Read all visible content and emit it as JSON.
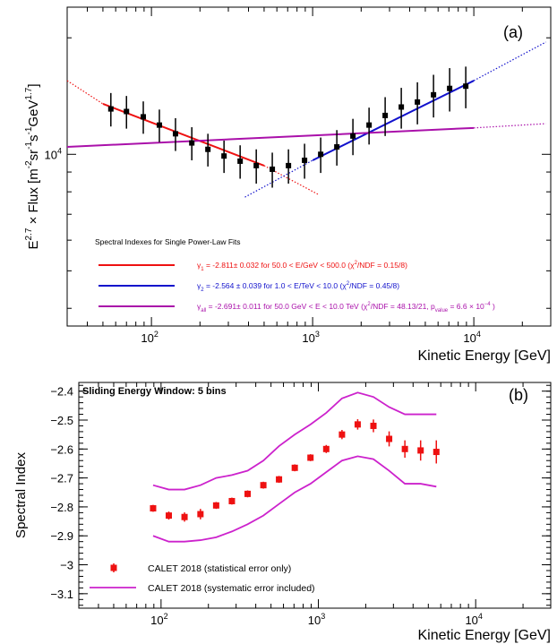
{
  "chart_data": [
    {
      "panel_label": "(a)",
      "type": "scatter",
      "xlabel": "Kinetic Energy [GeV]",
      "ylabel_parts": {
        "main": "E",
        "sup1": "2.7",
        "mid": " × Flux [m",
        "sup2": "-2",
        "s1": "sr",
        "sup3": "-1",
        "s2": "s",
        "sup4": "-1",
        "s3": "GeV",
        "sup5": "1.7",
        "end": "]"
      },
      "xscale": "log",
      "yscale": "log",
      "xlim": [
        30,
        30000
      ],
      "ylim": [
        3600,
        24000
      ],
      "x_ticks": [
        {
          "base": "10",
          "exp": "2",
          "value": 100
        },
        {
          "base": "10",
          "exp": "3",
          "value": 1000
        },
        {
          "base": "10",
          "exp": "4",
          "value": 10000
        }
      ],
      "y_ticks": [
        {
          "base": "10",
          "exp": "4",
          "value": 10000
        }
      ],
      "grid": false,
      "points": {
        "color": "#000000",
        "x": [
          56,
          70,
          89,
          112,
          141,
          178,
          224,
          282,
          355,
          447,
          562,
          708,
          891,
          1122,
          1413,
          1778,
          2239,
          2818,
          3548,
          4467,
          5623,
          7079,
          8913
        ],
        "y": [
          13100,
          12900,
          12500,
          11900,
          11300,
          10700,
          10300,
          9900,
          9600,
          9350,
          9150,
          9350,
          9650,
          10000,
          10450,
          11150,
          11900,
          12600,
          13250,
          13650,
          14250,
          14800,
          15000
        ],
        "err": [
          1300,
          1250,
          1200,
          1150,
          1100,
          1050,
          1000,
          950,
          950,
          950,
          950,
          950,
          1000,
          1050,
          1100,
          1200,
          1300,
          1450,
          1600,
          1700,
          1800,
          1900,
          1850
        ]
      },
      "fits": [
        {
          "color": "#ee1111",
          "x": [
            50,
            500
          ],
          "y": [
            13500,
            9350
          ],
          "ext": [
            [
              30,
              15500
            ],
            [
              1100,
              7850
            ]
          ],
          "legend": "γ₁ = -2.811± 0.032 for 50.0 < E/GeV < 500.0 (χ²/NDF = 0.15/8)"
        },
        {
          "color": "#1111cc",
          "x": [
            1000,
            10000
          ],
          "y": [
            9650,
            15500
          ],
          "ext": [
            [
              380,
              7750
            ],
            [
              28000,
              19500
            ]
          ],
          "legend": "γ₂ = -2.564 ± 0.039 for 1.0 < E/TeV < 10.0 (χ²/NDF = 0.45/8)"
        },
        {
          "color": "#aa11aa",
          "x": [
            30,
            10000
          ],
          "y": [
            10450,
            11700
          ],
          "ext": [
            [
              10000,
              11700
            ],
            [
              28000,
              12000
            ]
          ],
          "legend": "γall = -2.691± 0.011 for 50.0 GeV < E < 10.0 TeV (χ²/NDF = 48.13/21, pvalue = 6.6 × 10⁻⁴ )"
        }
      ],
      "legend_title": "Spectral Indexes for Single Power-Law Fits",
      "legend_entries": [
        {
          "pre": "γ",
          "sub": "1",
          "post": " = -2.811± 0.032 for 50.0 < E/GeV < 500.0 (χ",
          "sup": "2",
          "post2": "/NDF = 0.15/8)",
          "color": "#ee1111"
        },
        {
          "pre": "γ",
          "sub": "2",
          "post": " = -2.564 ± 0.039 for 1.0 < E/TeV < 10.0 (χ",
          "sup": "2",
          "post2": "/NDF = 0.45/8)",
          "color": "#1111cc"
        },
        {
          "pre": "γ",
          "sub": "all",
          "post": " = -2.691± 0.011 for 50.0 GeV < E < 10.0 TeV (χ",
          "sup": "2",
          "post2": "/NDF = 48.13/21, p",
          "sub2": "value",
          "post3": " = 6.6 × 10",
          "sup2": "−4",
          "post4": " )",
          "color": "#aa11aa"
        }
      ],
      "legend_placement": "bottom-left"
    },
    {
      "panel_label": "(b)",
      "type": "scatter",
      "title_in_plot": "Sliding Energy Window: 5 bins",
      "xlabel": "Kinetic Energy [GeV]",
      "ylabel": "Spectral Index",
      "xscale": "log",
      "xlim": [
        30,
        30000
      ],
      "ylim": [
        -3.15,
        -2.37
      ],
      "y_ticks": [
        "−2.4",
        "−2.5",
        "−2.6",
        "−2.7",
        "−2.8",
        "−2.9",
        "−3",
        "−3.1"
      ],
      "y_tick_values": [
        -2.4,
        -2.5,
        -2.6,
        -2.7,
        -2.8,
        -2.9,
        -3.0,
        -3.1
      ],
      "x_ticks": [
        {
          "base": "10",
          "exp": "2",
          "value": 100
        },
        {
          "base": "10",
          "exp": "3",
          "value": 1000
        },
        {
          "base": "10",
          "exp": "4",
          "value": 10000
        }
      ],
      "grid": false,
      "series": [
        {
          "name": "CALET 2018 (statistical error only)",
          "color": "#ee1111",
          "x": [
            89,
            112,
            141,
            178,
            224,
            282,
            355,
            447,
            562,
            708,
            891,
            1122,
            1413,
            1778,
            2239,
            2818,
            3548,
            4467,
            5623
          ],
          "y": [
            -2.805,
            -2.83,
            -2.835,
            -2.825,
            -2.795,
            -2.78,
            -2.755,
            -2.725,
            -2.705,
            -2.665,
            -2.63,
            -2.6,
            -2.55,
            -2.515,
            -2.52,
            -2.565,
            -2.6,
            -2.605,
            -2.61
          ],
          "err": [
            0.012,
            0.014,
            0.016,
            0.018,
            0.012,
            0.012,
            0.012,
            0.012,
            0.012,
            0.012,
            0.012,
            0.014,
            0.016,
            0.018,
            0.022,
            0.026,
            0.03,
            0.035,
            0.04
          ]
        },
        {
          "name": "CALET 2018 (systematic error included)",
          "color": "#cc22cc",
          "band_x": [
            89,
            112,
            141,
            178,
            224,
            282,
            355,
            447,
            562,
            708,
            891,
            1122,
            1413,
            1778,
            2239,
            2818,
            3548,
            4467,
            5623
          ],
          "upper": [
            -2.725,
            -2.74,
            -2.74,
            -2.725,
            -2.7,
            -2.69,
            -2.675,
            -2.64,
            -2.59,
            -2.55,
            -2.515,
            -2.475,
            -2.425,
            -2.405,
            -2.42,
            -2.455,
            -2.48,
            -2.48,
            -2.48
          ],
          "lower": [
            -2.9,
            -2.92,
            -2.92,
            -2.915,
            -2.905,
            -2.885,
            -2.86,
            -2.83,
            -2.79,
            -2.75,
            -2.72,
            -2.68,
            -2.64,
            -2.625,
            -2.635,
            -2.675,
            -2.72,
            -2.72,
            -2.73
          ]
        }
      ],
      "legend_placement": "bottom-left"
    }
  ]
}
